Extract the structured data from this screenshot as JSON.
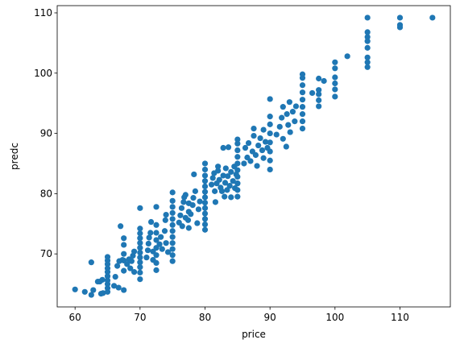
{
  "chart_data": {
    "type": "scatter",
    "title": "",
    "xlabel": "price",
    "ylabel": "predc",
    "xlim": [
      57.25,
      117.75
    ],
    "ylim": [
      61.2,
      111.2
    ],
    "xticks": [
      60,
      70,
      80,
      90,
      100,
      110
    ],
    "yticks": [
      70,
      80,
      90,
      100,
      110
    ],
    "grid": false,
    "legend": "none",
    "marker_color": "#1f77b4",
    "series": [
      {
        "points": [
          [
            60,
            64.1
          ],
          [
            61.5,
            63.7
          ],
          [
            62.5,
            68.6
          ],
          [
            62.5,
            63.2
          ],
          [
            62.8,
            64.0
          ],
          [
            63.5,
            65.4
          ],
          [
            63.8,
            65.4
          ],
          [
            64.0,
            63.4
          ],
          [
            64.2,
            65.7
          ],
          [
            64.3,
            63.5
          ],
          [
            65,
            63.7
          ],
          [
            65,
            64.3
          ],
          [
            65,
            65.0
          ],
          [
            65,
            65.6
          ],
          [
            65,
            66.3
          ],
          [
            65,
            67.0
          ],
          [
            65,
            67.6
          ],
          [
            65,
            68.3
          ],
          [
            65,
            68.9
          ],
          [
            65,
            69.5
          ],
          [
            66.0,
            64.7
          ],
          [
            66.2,
            66.2
          ],
          [
            66.5,
            68.0
          ],
          [
            66.8,
            68.8
          ],
          [
            66.7,
            64.4
          ],
          [
            67.0,
            74.6
          ],
          [
            67.3,
            69.0
          ],
          [
            67.5,
            67.2
          ],
          [
            67.5,
            64.0
          ],
          [
            67.5,
            68.9
          ],
          [
            67.5,
            70.0
          ],
          [
            67.5,
            71.5
          ],
          [
            67.5,
            72.6
          ],
          [
            68.0,
            68.3
          ],
          [
            68.3,
            69.1
          ],
          [
            68.5,
            67.6
          ],
          [
            68.7,
            68.8
          ],
          [
            68.9,
            69.7
          ],
          [
            69.1,
            67.0
          ],
          [
            69.1,
            70.4
          ],
          [
            70,
            65.8
          ],
          [
            70,
            66.9
          ],
          [
            70,
            67.8
          ],
          [
            70,
            68.6
          ],
          [
            70,
            69.4
          ],
          [
            70,
            70.2
          ],
          [
            70,
            71.0
          ],
          [
            70,
            71.8
          ],
          [
            70,
            72.6
          ],
          [
            70,
            73.4
          ],
          [
            70,
            74.2
          ],
          [
            70,
            77.6
          ],
          [
            71.0,
            69.4
          ],
          [
            71.2,
            70.6
          ],
          [
            71.3,
            71.7
          ],
          [
            71.4,
            72.7
          ],
          [
            71.6,
            73.5
          ],
          [
            71.7,
            75.3
          ],
          [
            72.0,
            69.0
          ],
          [
            72.0,
            70.4
          ],
          [
            72.5,
            67.3
          ],
          [
            72.5,
            68.5
          ],
          [
            72.5,
            69.8
          ],
          [
            72.5,
            71.0
          ],
          [
            72.5,
            72.3
          ],
          [
            72.5,
            73.5
          ],
          [
            72.5,
            74.8
          ],
          [
            72.5,
            77.8
          ],
          [
            73.0,
            71.6
          ],
          [
            73.2,
            72.8
          ],
          [
            73.4,
            70.8
          ],
          [
            73.8,
            73.8
          ],
          [
            73.9,
            75.6
          ],
          [
            74.0,
            71.8
          ],
          [
            74.0,
            76.5
          ],
          [
            74.3,
            70.3
          ],
          [
            75,
            68.8
          ],
          [
            75,
            69.8
          ],
          [
            75,
            70.8
          ],
          [
            75,
            71.8
          ],
          [
            75,
            72.8
          ],
          [
            75,
            73.8
          ],
          [
            75,
            74.8
          ],
          [
            75,
            75.8
          ],
          [
            75,
            76.8
          ],
          [
            75,
            77.8
          ],
          [
            75,
            78.8
          ],
          [
            75,
            80.2
          ],
          [
            76.0,
            75.2
          ],
          [
            76.2,
            76.4
          ],
          [
            76.4,
            77.6
          ],
          [
            76.5,
            74.6
          ],
          [
            76.7,
            78.6
          ],
          [
            76.8,
            79.4
          ],
          [
            77.0,
            76.0
          ],
          [
            77.0,
            79.8
          ],
          [
            77.4,
            75.6
          ],
          [
            77.5,
            74.3
          ],
          [
            77.5,
            77.0
          ],
          [
            77.5,
            78.4
          ],
          [
            77.8,
            76.6
          ],
          [
            78.1,
            78.1
          ],
          [
            78.2,
            79.3
          ],
          [
            78.3,
            83.2
          ],
          [
            78.5,
            80.4
          ],
          [
            78.8,
            75.1
          ],
          [
            79.0,
            77.4
          ],
          [
            79.2,
            78.7
          ],
          [
            80,
            74.0
          ],
          [
            80,
            74.9
          ],
          [
            80,
            75.8
          ],
          [
            80,
            76.7
          ],
          [
            80,
            77.6
          ],
          [
            80,
            78.5
          ],
          [
            80,
            79.4
          ],
          [
            80,
            80.3
          ],
          [
            80,
            81.2
          ],
          [
            80,
            82.1
          ],
          [
            80,
            83.0
          ],
          [
            80,
            84.0
          ],
          [
            80,
            85.0
          ],
          [
            81.0,
            81.5
          ],
          [
            81.2,
            82.6
          ],
          [
            81.4,
            83.4
          ],
          [
            81.5,
            80.4
          ],
          [
            81.6,
            78.6
          ],
          [
            81.8,
            81.7
          ],
          [
            82.0,
            83.8
          ],
          [
            82.0,
            84.5
          ],
          [
            82.2,
            82.3
          ],
          [
            82.4,
            81.0
          ],
          [
            82.6,
            80.4
          ],
          [
            82.8,
            83.0
          ],
          [
            82.8,
            87.6
          ],
          [
            83.0,
            79.5
          ],
          [
            83.1,
            81.8
          ],
          [
            83.2,
            84.2
          ],
          [
            83.4,
            80.6
          ],
          [
            83.5,
            82.9
          ],
          [
            83.6,
            87.7
          ],
          [
            83.8,
            81.3
          ],
          [
            84.0,
            79.4
          ],
          [
            84.0,
            83.6
          ],
          [
            84.3,
            82.1
          ],
          [
            84.5,
            84.5
          ],
          [
            84.6,
            80.9
          ],
          [
            84.8,
            83.2
          ],
          [
            85.0,
            81.7
          ],
          [
            85,
            79.5
          ],
          [
            85,
            80.6
          ],
          [
            85,
            81.7
          ],
          [
            85,
            82.8
          ],
          [
            85,
            83.9
          ],
          [
            85,
            85.0
          ],
          [
            85,
            86.1
          ],
          [
            85,
            87.2
          ],
          [
            85,
            88.3
          ],
          [
            85,
            89.0
          ],
          [
            86.0,
            85.0
          ],
          [
            86.2,
            87.6
          ],
          [
            86.5,
            86.0
          ],
          [
            86.7,
            88.4
          ],
          [
            87.0,
            85.4
          ],
          [
            87.3,
            87.0
          ],
          [
            87.5,
            89.6
          ],
          [
            87.5,
            90.8
          ],
          [
            87.8,
            86.4
          ],
          [
            88.0,
            84.6
          ],
          [
            88.2,
            88.0
          ],
          [
            88.5,
            89.2
          ],
          [
            88.8,
            87.2
          ],
          [
            89.0,
            85.9
          ],
          [
            89.0,
            90.6
          ],
          [
            89.3,
            88.6
          ],
          [
            89.6,
            87.6
          ],
          [
            90,
            84.0
          ],
          [
            90,
            85.5
          ],
          [
            90,
            87.0
          ],
          [
            90,
            88.5
          ],
          [
            90,
            90.0
          ],
          [
            90,
            91.5
          ],
          [
            90,
            92.8
          ],
          [
            90,
            95.7
          ],
          [
            91.0,
            89.8
          ],
          [
            91.5,
            91.1
          ],
          [
            91.8,
            92.6
          ],
          [
            92.0,
            89.1
          ],
          [
            92.0,
            94.4
          ],
          [
            92.5,
            87.8
          ],
          [
            92.6,
            93.2
          ],
          [
            92.8,
            91.4
          ],
          [
            93.0,
            95.2
          ],
          [
            93.1,
            90.2
          ],
          [
            93.5,
            93.6
          ],
          [
            93.8,
            92.0
          ],
          [
            94.0,
            94.5
          ],
          [
            95,
            90.8
          ],
          [
            95,
            92.0
          ],
          [
            95,
            93.2
          ],
          [
            95,
            94.4
          ],
          [
            95,
            95.6
          ],
          [
            95,
            96.8
          ],
          [
            95,
            98.0
          ],
          [
            95,
            99.2
          ],
          [
            95,
            99.8
          ],
          [
            96.5,
            96.7
          ],
          [
            97.5,
            94.5
          ],
          [
            97.5,
            95.5
          ],
          [
            97.5,
            96.5
          ],
          [
            97.5,
            97.2
          ],
          [
            97.5,
            99.1
          ],
          [
            98.3,
            98.7
          ],
          [
            100,
            96.1
          ],
          [
            100,
            97.3
          ],
          [
            100,
            98.3
          ],
          [
            100,
            99.3
          ],
          [
            100,
            100.8
          ],
          [
            100,
            101.8
          ],
          [
            101.9,
            102.8
          ],
          [
            105,
            101.0
          ],
          [
            105,
            101.8
          ],
          [
            105,
            102.6
          ],
          [
            105,
            104.2
          ],
          [
            105,
            105.3
          ],
          [
            105,
            106.0
          ],
          [
            105,
            106.8
          ],
          [
            105,
            109.2
          ],
          [
            110,
            107.6
          ],
          [
            110,
            108.0
          ],
          [
            110,
            109.2
          ],
          [
            115,
            109.2
          ]
        ]
      }
    ]
  }
}
